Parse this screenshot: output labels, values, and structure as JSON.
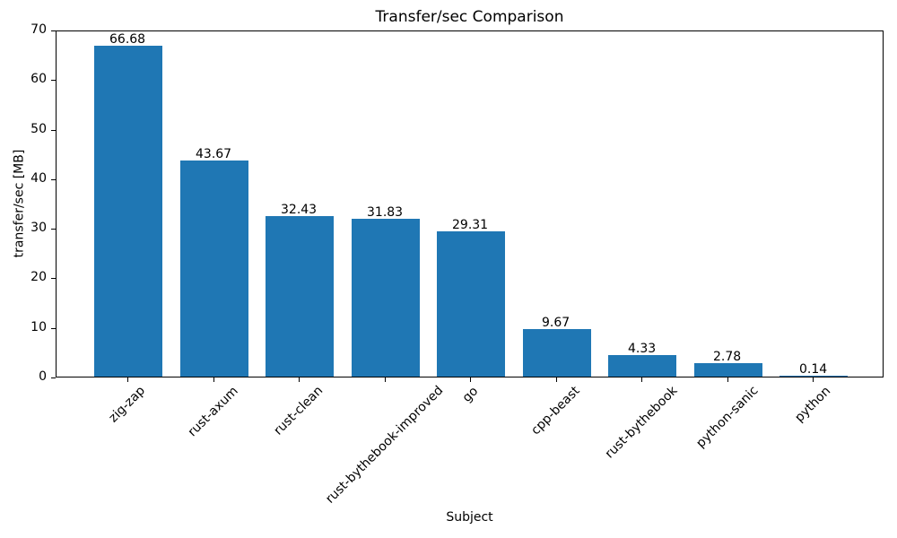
{
  "chart_data": {
    "type": "bar",
    "title": "Transfer/sec Comparison",
    "xlabel": "Subject",
    "ylabel": "transfer/sec [MB]",
    "categories": [
      "zig-zap",
      "rust-axum",
      "rust-clean",
      "rust-bythebook-improved",
      "go",
      "cpp-beast",
      "rust-bythebook",
      "python-sanic",
      "python"
    ],
    "values": [
      66.68,
      43.67,
      32.43,
      31.83,
      29.31,
      9.67,
      4.33,
      2.78,
      0.14
    ],
    "value_labels": [
      "66.68",
      "43.67",
      "32.43",
      "31.83",
      "29.31",
      "9.67",
      "4.33",
      "2.78",
      "0.14"
    ],
    "ylim": [
      0,
      70
    ],
    "yticks": [
      0,
      10,
      20,
      30,
      40,
      50,
      60,
      70
    ],
    "bar_color": "#1f77b4",
    "axis_color": "#000000",
    "background_color": "#ffffff",
    "grid": false,
    "legend_position": "none",
    "x_tick_label_rotation_deg": 45
  }
}
